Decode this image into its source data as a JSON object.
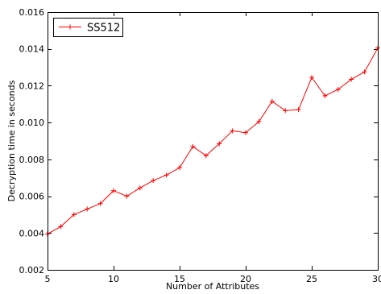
{
  "chart_data": {
    "type": "line",
    "xlabel": "Number of Attributes",
    "ylabel": "Decryption time in seconds",
    "xlim": [
      5,
      30
    ],
    "ylim": [
      0.002,
      0.016
    ],
    "xticks": [
      "5",
      "10",
      "15",
      "20",
      "25",
      "30"
    ],
    "yticks": [
      "0.002",
      "0.004",
      "0.006",
      "0.008",
      "0.010",
      "0.012",
      "0.014",
      "0.016"
    ],
    "grid": false,
    "legend_position": "top-left",
    "series": [
      {
        "name": "SS512",
        "color": "#ff0000",
        "marker": "plus",
        "x": [
          5,
          6,
          7,
          8,
          9,
          10,
          11,
          12,
          13,
          14,
          15,
          16,
          17,
          18,
          19,
          20,
          21,
          22,
          23,
          24,
          25,
          26,
          27,
          28,
          29,
          30
        ],
        "y": [
          0.00395,
          0.00435,
          0.005,
          0.0053,
          0.0056,
          0.0063,
          0.006,
          0.00645,
          0.00685,
          0.00715,
          0.00755,
          0.0087,
          0.0082,
          0.00885,
          0.00955,
          0.00945,
          0.01005,
          0.01115,
          0.01065,
          0.0107,
          0.01245,
          0.01145,
          0.0118,
          0.01235,
          0.01275,
          0.01405
        ]
      }
    ]
  }
}
